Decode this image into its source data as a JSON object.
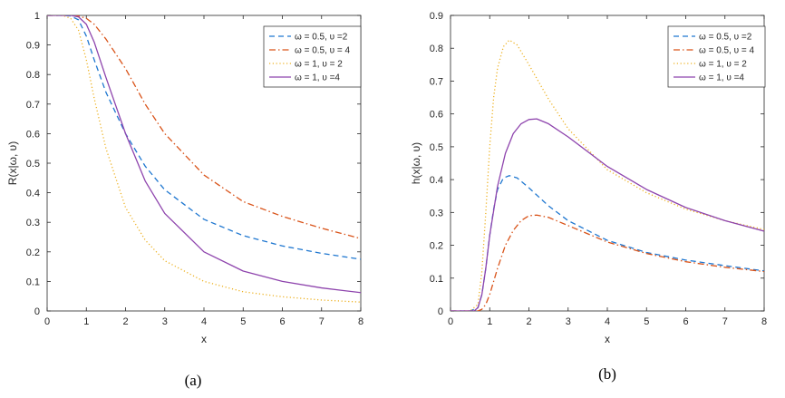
{
  "chart_data": [
    {
      "type": "line",
      "panel": "a",
      "caption": "(a)",
      "xlabel": "x",
      "ylabel": "R(x|ω, υ)",
      "xlim": [
        0,
        8
      ],
      "ylim": [
        0,
        1
      ],
      "xticks": [
        0,
        1,
        2,
        3,
        4,
        5,
        6,
        7,
        8
      ],
      "yticks": [
        0,
        0.1,
        0.2,
        0.3,
        0.4,
        0.5,
        0.6,
        0.7,
        0.8,
        0.9,
        1
      ],
      "legend_position": "top-right",
      "series": [
        {
          "name": "ω = 0.5, υ =2",
          "color": "#1f77d0",
          "dash": "dashed",
          "x": [
            0,
            0.4,
            0.6,
            0.8,
            1.0,
            1.2,
            1.5,
            2.0,
            2.5,
            3.0,
            4.0,
            5.0,
            6.0,
            7.0,
            8.0
          ],
          "y": [
            1,
            1,
            0.998,
            0.985,
            0.93,
            0.85,
            0.74,
            0.6,
            0.49,
            0.41,
            0.31,
            0.255,
            0.22,
            0.195,
            0.175
          ]
        },
        {
          "name": "ω = 0.5, υ = 4",
          "color": "#d95319",
          "dash": "dashdot",
          "x": [
            0,
            0.6,
            0.8,
            1.0,
            1.2,
            1.5,
            2.0,
            2.5,
            3.0,
            4.0,
            5.0,
            6.0,
            7.0,
            8.0
          ],
          "y": [
            1,
            1,
            0.998,
            0.99,
            0.97,
            0.92,
            0.82,
            0.7,
            0.6,
            0.46,
            0.37,
            0.32,
            0.28,
            0.245
          ]
        },
        {
          "name": "ω = 1, υ = 2",
          "color": "#edb120",
          "dash": "dotted",
          "x": [
            0,
            0.4,
            0.6,
            0.8,
            1.0,
            1.2,
            1.5,
            2.0,
            2.5,
            3.0,
            4.0,
            5.0,
            6.0,
            7.0,
            8.0
          ],
          "y": [
            1,
            1,
            0.99,
            0.95,
            0.85,
            0.72,
            0.55,
            0.35,
            0.24,
            0.17,
            0.1,
            0.065,
            0.048,
            0.037,
            0.03
          ]
        },
        {
          "name": "ω = 1, υ =4",
          "color": "#8e44ad",
          "dash": "solid",
          "x": [
            0,
            0.6,
            0.8,
            1.0,
            1.2,
            1.5,
            2.0,
            2.5,
            3.0,
            4.0,
            5.0,
            6.0,
            7.0,
            8.0
          ],
          "y": [
            1,
            1,
            0.995,
            0.97,
            0.91,
            0.79,
            0.6,
            0.44,
            0.33,
            0.2,
            0.135,
            0.1,
            0.078,
            0.062
          ]
        }
      ]
    },
    {
      "type": "line",
      "panel": "b",
      "caption": "(b)",
      "xlabel": "x",
      "ylabel": "h(x|ω, υ)",
      "xlim": [
        0,
        8
      ],
      "ylim": [
        0,
        0.9
      ],
      "xticks": [
        0,
        1,
        2,
        3,
        4,
        5,
        6,
        7,
        8
      ],
      "yticks": [
        0,
        0.1,
        0.2,
        0.3,
        0.4,
        0.5,
        0.6,
        0.7,
        0.8,
        0.9
      ],
      "legend_position": "top-right",
      "series": [
        {
          "name": "ω = 0.5, υ =2",
          "color": "#1f77d0",
          "dash": "dashed",
          "x": [
            0,
            0.5,
            0.7,
            0.8,
            0.9,
            1.0,
            1.1,
            1.2,
            1.35,
            1.5,
            1.7,
            2.0,
            2.5,
            3.0,
            4.0,
            5.0,
            6.0,
            7.0,
            8.0
          ],
          "y": [
            0,
            0,
            0.01,
            0.05,
            0.13,
            0.23,
            0.31,
            0.37,
            0.405,
            0.412,
            0.405,
            0.375,
            0.32,
            0.275,
            0.215,
            0.178,
            0.155,
            0.138,
            0.122
          ]
        },
        {
          "name": "ω = 0.5, υ = 4",
          "color": "#d95319",
          "dash": "dashdot",
          "x": [
            0,
            0.7,
            0.8,
            0.9,
            1.0,
            1.2,
            1.4,
            1.6,
            1.8,
            2.0,
            2.2,
            2.5,
            3.0,
            4.0,
            5.0,
            6.0,
            7.0,
            8.0
          ],
          "y": [
            0,
            0,
            0.005,
            0.02,
            0.05,
            0.13,
            0.2,
            0.245,
            0.275,
            0.29,
            0.292,
            0.285,
            0.26,
            0.21,
            0.175,
            0.15,
            0.133,
            0.12
          ]
        },
        {
          "name": "ω = 1, υ = 2",
          "color": "#edb120",
          "dash": "dotted",
          "x": [
            0,
            0.5,
            0.7,
            0.8,
            0.9,
            1.0,
            1.1,
            1.2,
            1.35,
            1.5,
            1.7,
            2.0,
            2.5,
            3.0,
            4.0,
            5.0,
            6.0,
            7.0,
            8.0
          ],
          "y": [
            0,
            0,
            0.02,
            0.12,
            0.3,
            0.5,
            0.65,
            0.74,
            0.805,
            0.825,
            0.81,
            0.75,
            0.645,
            0.555,
            0.43,
            0.36,
            0.31,
            0.275,
            0.248
          ]
        },
        {
          "name": "ω = 1, υ =4",
          "color": "#8e44ad",
          "dash": "solid",
          "x": [
            0,
            0.6,
            0.7,
            0.8,
            0.9,
            1.0,
            1.2,
            1.4,
            1.6,
            1.8,
            2.0,
            2.2,
            2.5,
            3.0,
            4.0,
            5.0,
            6.0,
            7.0,
            8.0
          ],
          "y": [
            0,
            0,
            0.01,
            0.05,
            0.13,
            0.23,
            0.38,
            0.48,
            0.54,
            0.57,
            0.583,
            0.585,
            0.57,
            0.53,
            0.44,
            0.37,
            0.315,
            0.275,
            0.243
          ]
        }
      ]
    }
  ]
}
